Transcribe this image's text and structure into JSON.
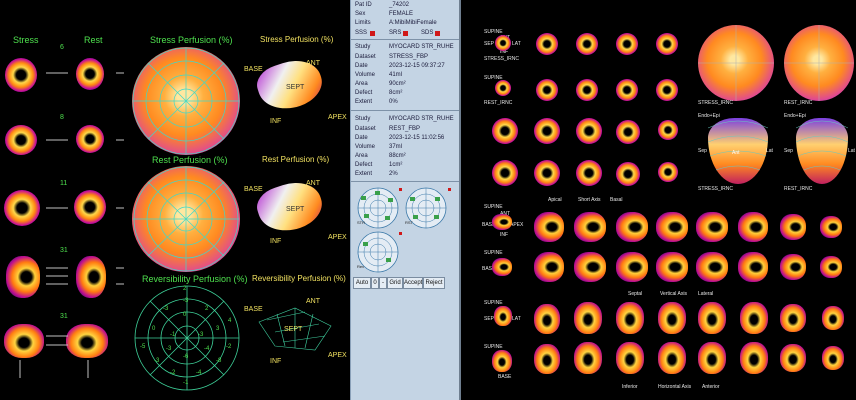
{
  "left": {
    "col_stress_label": "Stress",
    "col_rest_label": "Rest",
    "slice_numbers": [
      "6",
      "8",
      "11",
      "31",
      "31"
    ],
    "polar_stress_title": "Stress Perfusion (%)",
    "polar_rest_title": "Rest Perfusion (%)",
    "polar_rev_title": "Reversibility Perfusion (%)",
    "view3d_stress_title": "Stress Perfusion (%)",
    "view3d_rest_title": "Rest Perfusion (%)",
    "view3d_rev_title": "Reversibility Perfusion (%)",
    "orient": {
      "base": "BASE",
      "ant": "ANT",
      "inf": "INF",
      "apex": "APEX",
      "sept": "SEPT"
    },
    "rev_values": [
      "2",
      "-3",
      "0",
      "-3",
      "2",
      "0",
      "3",
      "4",
      "-5",
      "-1",
      "-3",
      "-2",
      "-3",
      "-4",
      "-3",
      "-8",
      "-6",
      "-2",
      "-4",
      "-1"
    ]
  },
  "panel": {
    "patient": {
      "rows": [
        {
          "k": "Pat ID",
          "v": "_74202"
        },
        {
          "k": "Sex",
          "v": "FEMALE"
        },
        {
          "k": "Limits",
          "v": "A:MibiMibiFemale"
        }
      ],
      "scores": [
        "SSS",
        "SRS",
        "SDS"
      ]
    },
    "stress": {
      "rows": [
        {
          "k": "Study",
          "v": "MYOCARD STR_RUHE"
        },
        {
          "k": "Dataset",
          "v": "STRESS_FBP"
        },
        {
          "k": "Date",
          "v": "2023-12-15 09:37:27"
        },
        {
          "k": "Volume",
          "v": "41ml"
        },
        {
          "k": "Area",
          "v": "90cm²"
        },
        {
          "k": "Defect",
          "v": "8cm²"
        },
        {
          "k": "Extent",
          "v": "0%"
        }
      ]
    },
    "rest": {
      "rows": [
        {
          "k": "Study",
          "v": "MYOCARD STR_RUHE"
        },
        {
          "k": "Dataset",
          "v": "REST_FBP"
        },
        {
          "k": "Date",
          "v": "2023-12-15 11:02:56"
        },
        {
          "k": "Volume",
          "v": "37ml"
        },
        {
          "k": "Area",
          "v": "88cm²"
        },
        {
          "k": "Defect",
          "v": "1cm²"
        },
        {
          "k": "Extent",
          "v": "2%"
        }
      ]
    },
    "mini_labels": [
      "STR",
      "RST",
      "Rev"
    ],
    "buttons": {
      "auto": "Auto",
      "zero": "0",
      "dash": "-",
      "grid": "Grid",
      "accept": "Accept",
      "reject": "Reject"
    }
  },
  "right": {
    "orient": {
      "supine": "SUPINE",
      "ant": "ANT",
      "sep": "SEP",
      "lat": "LAT",
      "inf": "INF",
      "base": "BASE",
      "apex": "APEX"
    },
    "row_labels": [
      "STRESS_IRNC",
      "REST_IRNC"
    ],
    "big_polar_labels": [
      "STRESS_IRNC",
      "REST_IRNC"
    ],
    "endo_epi": "Endo+Epi",
    "view3d_labels": {
      "sep": "Sep",
      "lat": "Lat",
      "ant": "Ant"
    },
    "short_axis_caption": {
      "left": "Apical",
      "mid": "Short Axis",
      "right": "Basal"
    },
    "vertical_axis_caption": {
      "left": "Septal",
      "mid": "Vertical Axis",
      "right": "Lateral"
    },
    "horizontal_axis_caption": {
      "left": "Inferior",
      "mid": "Horizontal Axis",
      "right": "Anterior"
    }
  }
}
